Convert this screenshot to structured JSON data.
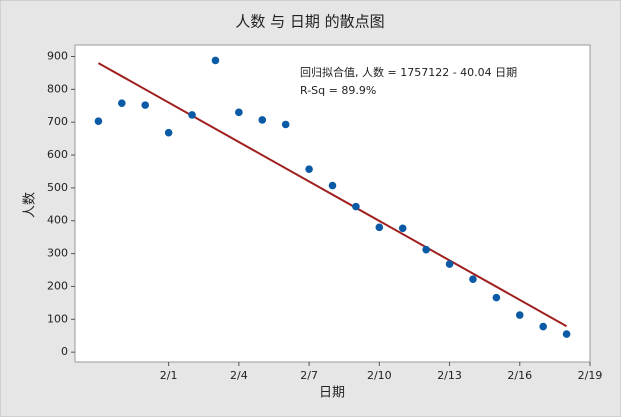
{
  "chart_data": {
    "type": "scatter",
    "title": "人数 与 日期 的散点图",
    "x_label": "日期",
    "y_label": "人数",
    "annotations": [
      "回归拟合值, 人数 = 1757122 - 40.04 日期",
      "R-Sq = 89.9%"
    ],
    "x": [
      "1/29",
      "1/30",
      "1/31",
      "2/1",
      "2/2",
      "2/3",
      "2/4",
      "2/5",
      "2/6",
      "2/7",
      "2/8",
      "2/9",
      "2/10",
      "2/11",
      "2/12",
      "2/13",
      "2/14",
      "2/15",
      "2/16",
      "2/17",
      "2/18"
    ],
    "values": [
      703,
      758,
      752,
      668,
      722,
      888,
      730,
      707,
      693,
      557,
      507,
      443,
      380,
      377,
      312,
      268,
      222,
      166,
      113,
      78,
      55
    ],
    "color": "#0b5aa6",
    "fit": {
      "x": [
        "1/29",
        "2/18"
      ],
      "values": [
        880,
        79
      ],
      "color": "#a02020"
    },
    "xlim": [
      "1/28",
      "2/19"
    ],
    "xticks": [
      "2/1",
      "2/4",
      "2/7",
      "2/10",
      "2/13",
      "2/16",
      "2/19"
    ],
    "ylim": [
      -30,
      935
    ],
    "yticks": [
      0,
      100,
      200,
      300,
      400,
      500,
      600,
      700,
      800,
      900
    ]
  }
}
